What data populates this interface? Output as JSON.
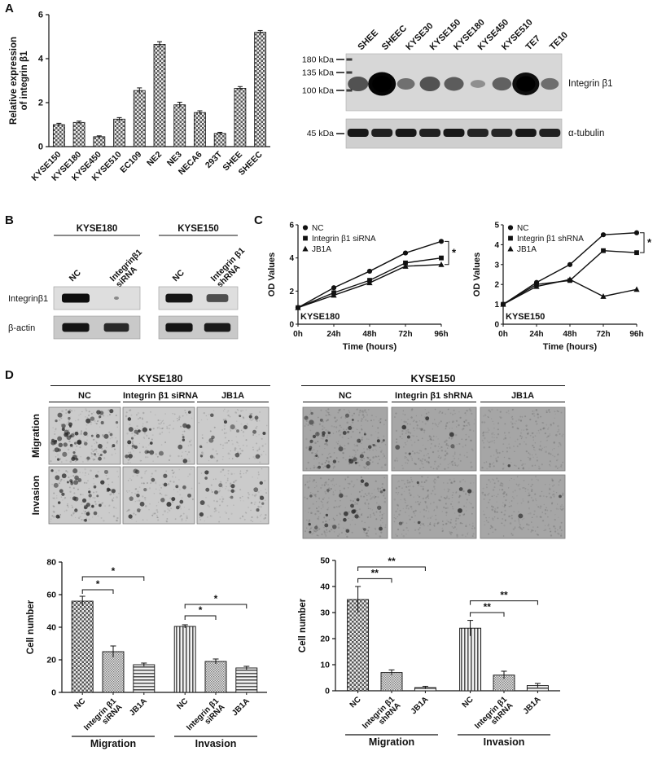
{
  "panels": {
    "A": {
      "label": "A"
    },
    "B": {
      "label": "B",
      "row_labels": [
        "Integrinβ1",
        "β-actin"
      ],
      "groups": [
        {
          "name": "KYSE180",
          "lanes": [
            "NC",
            "Integrinβ1 siRNA"
          ],
          "rows": [
            {
              "intensities": [
                1.0,
                0.08
              ]
            },
            {
              "intensities": [
                0.95,
                0.8
              ]
            }
          ]
        },
        {
          "name": "KYSE150",
          "lanes": [
            "NC",
            "Integrin β1 shRNA"
          ],
          "rows": [
            {
              "intensities": [
                0.95,
                0.55
              ]
            },
            {
              "intensities": [
                0.95,
                0.9
              ]
            }
          ]
        }
      ]
    },
    "C": {
      "label": "C"
    },
    "D": {
      "label": "D",
      "left": {
        "title": "KYSE180",
        "columns": [
          "NC",
          "Integrin β1 siRNA",
          "JB1A"
        ],
        "rows": [
          "Migration",
          "Invasion"
        ]
      },
      "right": {
        "title": "KYSE150",
        "columns": [
          "NC",
          "Integrin β1 shRNA",
          "JB1A"
        ],
        "rows": [
          "Migration",
          "Invasion"
        ]
      }
    }
  },
  "western_blot_A": {
    "lane_labels": [
      "SHEE",
      "SHEEC",
      "KYSE30",
      "KYSE150",
      "KYSE180",
      "KYSE450",
      "KYSE510",
      "TE7",
      "TE10"
    ],
    "marker_labels": [
      "180  kDa",
      "135  kDa",
      "100  kDa"
    ],
    "marker_45": "45  kDa",
    "rows": [
      {
        "label": "Integrin β1",
        "intensities": [
          0.5,
          1.0,
          0.32,
          0.5,
          0.45,
          0.12,
          0.42,
          0.95,
          0.33
        ]
      },
      {
        "label": "α-tubulin",
        "intensities": [
          0.9,
          0.85,
          0.9,
          0.85,
          0.9,
          0.82,
          0.8,
          0.9,
          0.85
        ]
      }
    ]
  },
  "chart_data": [
    {
      "id": "panelA_expression",
      "type": "bar",
      "title": "",
      "ylabel": [
        "Relative expression",
        "of integrin β1"
      ],
      "xlabel": "",
      "ylim": [
        0,
        6
      ],
      "yticks": [
        0,
        2,
        4,
        6
      ],
      "categories": [
        "KYSE150",
        "KYSE180",
        "KYSE450",
        "KYSE510",
        "EC109",
        "NE2",
        "NE3",
        "NECA6",
        "293T",
        "SHEE",
        "SHEEC"
      ],
      "values": [
        1.0,
        1.1,
        0.45,
        1.25,
        2.55,
        4.65,
        1.9,
        1.55,
        0.6,
        2.65,
        5.2
      ],
      "errors": [
        0.06,
        0.06,
        0.04,
        0.07,
        0.12,
        0.12,
        0.12,
        0.08,
        0.05,
        0.08,
        0.08
      ]
    },
    {
      "id": "panelC_KYSE180",
      "type": "line",
      "annotation": "KYSE180",
      "ylabel": "OD Values",
      "xlabel": "Time (hours)",
      "x": [
        "0h",
        "24h",
        "48h",
        "72h",
        "96h"
      ],
      "ylim": [
        0,
        6
      ],
      "yticks": [
        0,
        2,
        4,
        6
      ],
      "series": [
        {
          "name": "NC",
          "marker": "circle",
          "values": [
            1.0,
            2.2,
            3.2,
            4.3,
            5.0
          ]
        },
        {
          "name": "Integrin β1 siRNA",
          "marker": "square",
          "values": [
            1.0,
            1.9,
            2.65,
            3.7,
            4.0
          ]
        },
        {
          "name": "JB1A",
          "marker": "triangle",
          "values": [
            1.0,
            1.75,
            2.5,
            3.5,
            3.6
          ]
        }
      ],
      "bracket": {
        "from": 0,
        "to": 2,
        "label": "*"
      }
    },
    {
      "id": "panelC_KYSE150",
      "type": "line",
      "annotation": "KYSE150",
      "ylabel": "OD Values",
      "xlabel": "Time (hours)",
      "x": [
        "0h",
        "24h",
        "48h",
        "72h",
        "96h"
      ],
      "ylim": [
        0,
        5
      ],
      "yticks": [
        0,
        1,
        2,
        3,
        4,
        5
      ],
      "series": [
        {
          "name": "NC",
          "marker": "circle",
          "values": [
            1.0,
            2.1,
            3.0,
            4.5,
            4.6
          ]
        },
        {
          "name": "Integrin β1 shRNA",
          "marker": "square",
          "values": [
            1.0,
            2.0,
            2.2,
            3.7,
            3.6
          ]
        },
        {
          "name": "JB1A",
          "marker": "triangle",
          "values": [
            1.0,
            1.9,
            2.25,
            1.4,
            1.75
          ]
        }
      ],
      "bracket": {
        "from": 0,
        "to": 1,
        "label": "*"
      }
    },
    {
      "id": "panelD_KYSE180_counts",
      "type": "bar-grouped",
      "ylabel": "Cell number",
      "ylim": [
        0,
        80
      ],
      "yticks": [
        0,
        20,
        40,
        60,
        80
      ],
      "groups": [
        "Migration",
        "Invasion"
      ],
      "categories": [
        "NC",
        "Integrin β1\nsiRNA",
        "JB1A"
      ],
      "values": [
        [
          56,
          25,
          17
        ],
        [
          40.5,
          19,
          15
        ]
      ],
      "errors": [
        [
          3,
          3.5,
          1
        ],
        [
          1,
          1.5,
          1
        ]
      ],
      "patterns": [
        [
          "checker",
          "dots",
          "hlines"
        ],
        [
          "vlines",
          "dots",
          "hlines"
        ]
      ],
      "significance": "*",
      "brackets": [
        {
          "from": 0,
          "to": 1,
          "y": 63
        },
        {
          "from": 0,
          "to": 2,
          "y": 71
        },
        {
          "from": 3,
          "to": 4,
          "y": 47
        },
        {
          "from": 3,
          "to": 5,
          "y": 54
        }
      ]
    },
    {
      "id": "panelD_KYSE150_counts",
      "type": "bar-grouped",
      "ylabel": "Cell number",
      "ylim": [
        0,
        50
      ],
      "yticks": [
        0,
        10,
        20,
        30,
        40,
        50
      ],
      "groups": [
        "Migration",
        "Invasion"
      ],
      "categories": [
        "NC",
        "Integrin β1\nshRNA",
        "JB1A"
      ],
      "values": [
        [
          35,
          7,
          1.2
        ],
        [
          24,
          6,
          2
        ]
      ],
      "errors": [
        [
          5,
          1,
          0.5
        ],
        [
          3,
          1.5,
          0.8
        ]
      ],
      "patterns": [
        [
          "checker",
          "dots",
          "hlines"
        ],
        [
          "vlines",
          "dots",
          "hlines"
        ]
      ],
      "significance": "**",
      "brackets": [
        {
          "from": 0,
          "to": 1,
          "y": 43
        },
        {
          "from": 0,
          "to": 2,
          "y": 47.5
        },
        {
          "from": 3,
          "to": 4,
          "y": 30
        },
        {
          "from": 3,
          "to": 5,
          "y": 34.5
        }
      ]
    }
  ]
}
